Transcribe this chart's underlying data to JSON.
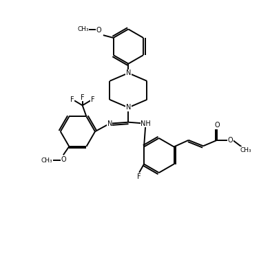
{
  "background_color": "#ffffff",
  "line_color": "#000000",
  "line_width": 1.4,
  "font_size": 7.0,
  "fig_width": 3.92,
  "fig_height": 3.94,
  "dpi": 100,
  "xlim": [
    0,
    10
  ],
  "ylim": [
    0,
    10
  ]
}
